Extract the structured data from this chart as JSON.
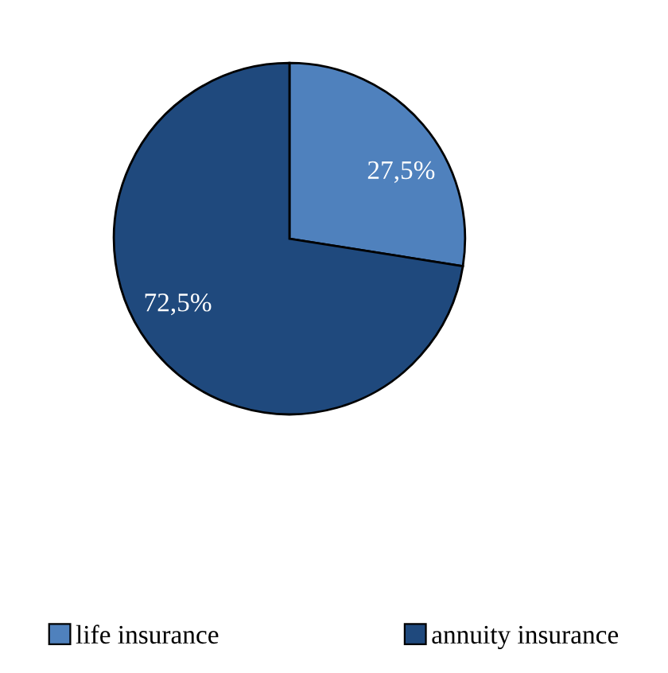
{
  "chart_data": {
    "type": "pie",
    "categories": [
      "life insurance",
      "annuity insurance"
    ],
    "values": [
      27.5,
      72.5
    ],
    "colors": [
      "#4f81bd",
      "#1f497d"
    ],
    "value_labels": [
      "27,5%",
      "72,5%"
    ],
    "legend": "bottom"
  }
}
